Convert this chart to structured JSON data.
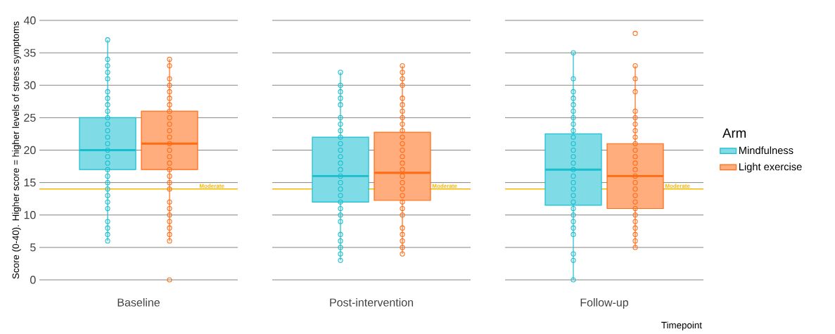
{
  "chart_data": {
    "type": "box",
    "categories": [
      "Baseline",
      "Post-intervention",
      "Follow-up"
    ],
    "xlabel": "Timepoint",
    "ylabel": "Score (0-40). Higher score = higher levels of stress symptoms",
    "legend_title": "Arm",
    "ylim": [
      0,
      40
    ],
    "yticks": [
      0,
      5,
      10,
      15,
      20,
      25,
      30,
      35,
      40
    ],
    "grid": "y",
    "legend": "right",
    "marker": "circle",
    "ref_lines": [
      {
        "axis": "y",
        "value": 14,
        "label": "Moderate",
        "color": "#f5b700"
      }
    ],
    "series": [
      {
        "name": "Mindfulness",
        "color": "#17becf",
        "boxes": [
          {
            "low": 6,
            "q1": 17,
            "median": 20,
            "q3": 25,
            "high": 37
          },
          {
            "low": 3,
            "q1": 12,
            "median": 16,
            "q3": 22,
            "high": 32
          },
          {
            "low": 0,
            "q1": 11.5,
            "median": 17,
            "q3": 22.5,
            "high": 35
          }
        ]
      },
      {
        "name": "Light exercise",
        "color": "#ff6a13",
        "boxes": [
          {
            "low": 6,
            "q1": 17,
            "median": 21,
            "q3": 26,
            "high": 34
          },
          {
            "low": 4,
            "q1": 12.25,
            "median": 16.5,
            "q3": 22.75,
            "high": 33
          },
          {
            "low": 5,
            "q1": 11,
            "median": 16,
            "q3": 21,
            "high": 33
          }
        ]
      },
      {
        "type": "scatter",
        "color": "#17becf",
        "x": [
          "Baseline",
          "Baseline",
          "Baseline",
          "Baseline",
          "Baseline",
          "Baseline",
          "Baseline",
          "Baseline",
          "Baseline",
          "Baseline",
          "Baseline",
          "Baseline",
          "Baseline",
          "Baseline",
          "Baseline",
          "Baseline",
          "Baseline",
          "Baseline",
          "Baseline",
          "Baseline",
          "Baseline",
          "Baseline",
          "Baseline",
          "Baseline",
          "Baseline",
          "Baseline",
          "Baseline",
          "Baseline",
          "Post-intervention",
          "Post-intervention",
          "Post-intervention",
          "Post-intervention",
          "Post-intervention",
          "Post-intervention",
          "Post-intervention",
          "Post-intervention",
          "Post-intervention",
          "Post-intervention",
          "Post-intervention",
          "Post-intervention",
          "Post-intervention",
          "Post-intervention",
          "Post-intervention",
          "Post-intervention",
          "Post-intervention",
          "Post-intervention",
          "Post-intervention",
          "Post-intervention",
          "Post-intervention",
          "Post-intervention",
          "Post-intervention",
          "Post-intervention",
          "Post-intervention",
          "Post-intervention",
          "Post-intervention",
          "Follow-up",
          "Follow-up",
          "Follow-up",
          "Follow-up",
          "Follow-up",
          "Follow-up",
          "Follow-up",
          "Follow-up",
          "Follow-up",
          "Follow-up",
          "Follow-up",
          "Follow-up",
          "Follow-up",
          "Follow-up",
          "Follow-up",
          "Follow-up",
          "Follow-up",
          "Follow-up",
          "Follow-up",
          "Follow-up",
          "Follow-up",
          "Follow-up",
          "Follow-up",
          "Follow-up",
          "Follow-up",
          "Follow-up",
          "Follow-up",
          "Follow-up"
        ],
        "values": [
          37,
          34,
          33,
          32,
          31,
          29,
          28,
          27,
          26,
          25,
          24,
          23,
          22,
          21,
          20,
          19,
          18,
          17,
          16,
          15,
          14,
          13,
          12,
          11,
          9,
          8,
          7,
          6,
          32,
          30,
          29,
          28,
          27,
          25,
          24,
          23,
          22,
          21,
          20,
          19,
          18,
          17,
          16,
          15,
          14,
          13,
          12,
          11,
          10,
          9,
          7,
          6,
          5,
          4,
          3,
          35,
          31,
          29,
          28,
          27,
          26,
          25,
          24,
          23,
          22,
          21,
          20,
          19,
          18,
          17,
          16,
          15,
          14,
          13,
          12,
          11,
          10,
          9,
          8,
          7,
          4,
          3,
          0
        ]
      },
      {
        "type": "scatter",
        "color": "#ff6a13",
        "x": [
          "Baseline",
          "Baseline",
          "Baseline",
          "Baseline",
          "Baseline",
          "Baseline",
          "Baseline",
          "Baseline",
          "Baseline",
          "Baseline",
          "Baseline",
          "Baseline",
          "Baseline",
          "Baseline",
          "Baseline",
          "Baseline",
          "Baseline",
          "Baseline",
          "Baseline",
          "Baseline",
          "Baseline",
          "Baseline",
          "Baseline",
          "Baseline",
          "Baseline",
          "Baseline",
          "Baseline",
          "Baseline",
          "Post-intervention",
          "Post-intervention",
          "Post-intervention",
          "Post-intervention",
          "Post-intervention",
          "Post-intervention",
          "Post-intervention",
          "Post-intervention",
          "Post-intervention",
          "Post-intervention",
          "Post-intervention",
          "Post-intervention",
          "Post-intervention",
          "Post-intervention",
          "Post-intervention",
          "Post-intervention",
          "Post-intervention",
          "Post-intervention",
          "Post-intervention",
          "Post-intervention",
          "Post-intervention",
          "Post-intervention",
          "Post-intervention",
          "Post-intervention",
          "Post-intervention",
          "Post-intervention",
          "Post-intervention",
          "Post-intervention",
          "Follow-up",
          "Follow-up",
          "Follow-up",
          "Follow-up",
          "Follow-up",
          "Follow-up",
          "Follow-up",
          "Follow-up",
          "Follow-up",
          "Follow-up",
          "Follow-up",
          "Follow-up",
          "Follow-up",
          "Follow-up",
          "Follow-up",
          "Follow-up",
          "Follow-up",
          "Follow-up",
          "Follow-up",
          "Follow-up",
          "Follow-up",
          "Follow-up",
          "Follow-up",
          "Follow-up",
          "Follow-up",
          "Follow-up"
        ],
        "values": [
          34,
          33,
          31,
          30,
          29,
          28,
          27,
          26,
          25,
          24,
          23,
          22,
          21,
          20,
          19,
          18,
          17,
          16,
          15,
          14,
          12,
          11,
          10,
          9,
          8,
          7,
          6,
          0,
          33,
          32,
          31,
          30,
          28,
          27,
          26,
          25,
          24,
          23,
          22,
          21,
          20,
          19,
          18,
          17,
          16,
          15,
          14,
          13,
          12,
          11,
          10,
          8,
          7,
          6,
          5,
          4,
          38,
          33,
          31,
          29,
          26,
          25,
          24,
          23,
          22,
          21,
          20,
          19,
          18,
          17,
          16,
          15,
          14,
          13,
          12,
          11,
          10,
          9,
          8,
          7,
          6,
          5
        ]
      }
    ]
  }
}
